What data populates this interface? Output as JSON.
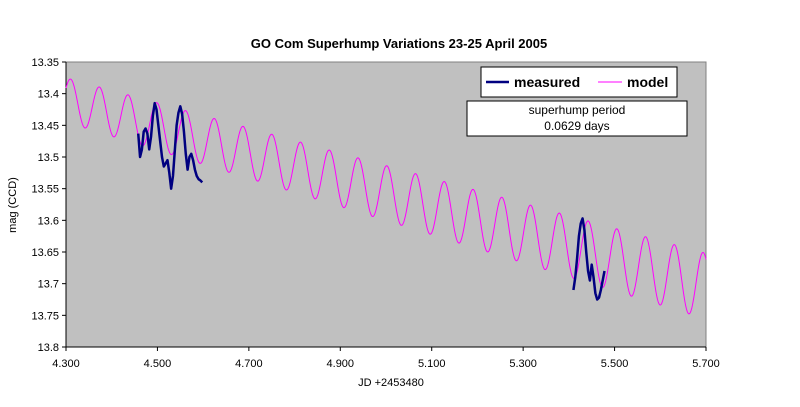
{
  "chart_data": {
    "type": "line",
    "title": "GO Com Superhump Variations 23-25 April 2005",
    "xlabel": "JD +2453480",
    "ylabel": "mag (CCD)",
    "xlim": [
      4.3,
      5.7
    ],
    "ylim": [
      13.35,
      13.8
    ],
    "y_inverted": true,
    "x_ticks": [
      "4.300",
      "4.500",
      "4.700",
      "4.900",
      "5.100",
      "5.300",
      "5.500",
      "5.700"
    ],
    "y_ticks": [
      "13.35",
      "13.4",
      "13.45",
      "13.5",
      "13.55",
      "13.6",
      "13.65",
      "13.7",
      "13.75",
      "13.8"
    ],
    "plot_background": "#c0c0c0",
    "grid": false,
    "legend_position": "top-right",
    "annotation": {
      "line1": "superhump period",
      "line2": "0.0629 days"
    },
    "series": [
      {
        "name": "model",
        "color": "#ff00ff",
        "model": {
          "period_days": 0.0629,
          "x_start": 4.3,
          "x_end": 5.7,
          "trend_start_mag": 13.41,
          "trend_slope_mag_per_day": 0.21,
          "amplitude_start_mag": 0.035,
          "amplitude_end_mag": 0.052,
          "first_minimum_x": 4.31
        }
      },
      {
        "name": "measured",
        "color": "#000080",
        "segments": [
          {
            "x": [
              4.458,
              4.462,
              4.466,
              4.47,
              4.474,
              4.478,
              4.482,
              4.486,
              4.49,
              4.494,
              4.498,
              4.502,
              4.506,
              4.51,
              4.514,
              4.518,
              4.522,
              4.526,
              4.53,
              4.534,
              4.538,
              4.542,
              4.546,
              4.55,
              4.554,
              4.558,
              4.562,
              4.566,
              4.57,
              4.574,
              4.578,
              4.582,
              4.586,
              4.59,
              4.594,
              4.598
            ],
            "y": [
              13.463,
              13.5,
              13.488,
              13.46,
              13.455,
              13.463,
              13.488,
              13.468,
              13.435,
              13.415,
              13.425,
              13.45,
              13.475,
              13.5,
              13.515,
              13.51,
              13.505,
              13.525,
              13.55,
              13.53,
              13.49,
              13.45,
              13.43,
              13.42,
              13.432,
              13.46,
              13.495,
              13.52,
              13.5,
              13.495,
              13.505,
              13.52,
              13.53,
              13.535,
              13.537,
              13.54
            ]
          },
          {
            "x": [
              5.41,
              5.414,
              5.418,
              5.422,
              5.426,
              5.43,
              5.434,
              5.438,
              5.442,
              5.446,
              5.45,
              5.454,
              5.458,
              5.462,
              5.466,
              5.47,
              5.474,
              5.478
            ],
            "y": [
              13.71,
              13.69,
              13.66,
              13.625,
              13.605,
              13.597,
              13.615,
              13.65,
              13.68,
              13.695,
              13.67,
              13.69,
              13.715,
              13.725,
              13.722,
              13.71,
              13.695,
              13.68
            ]
          }
        ]
      }
    ]
  }
}
